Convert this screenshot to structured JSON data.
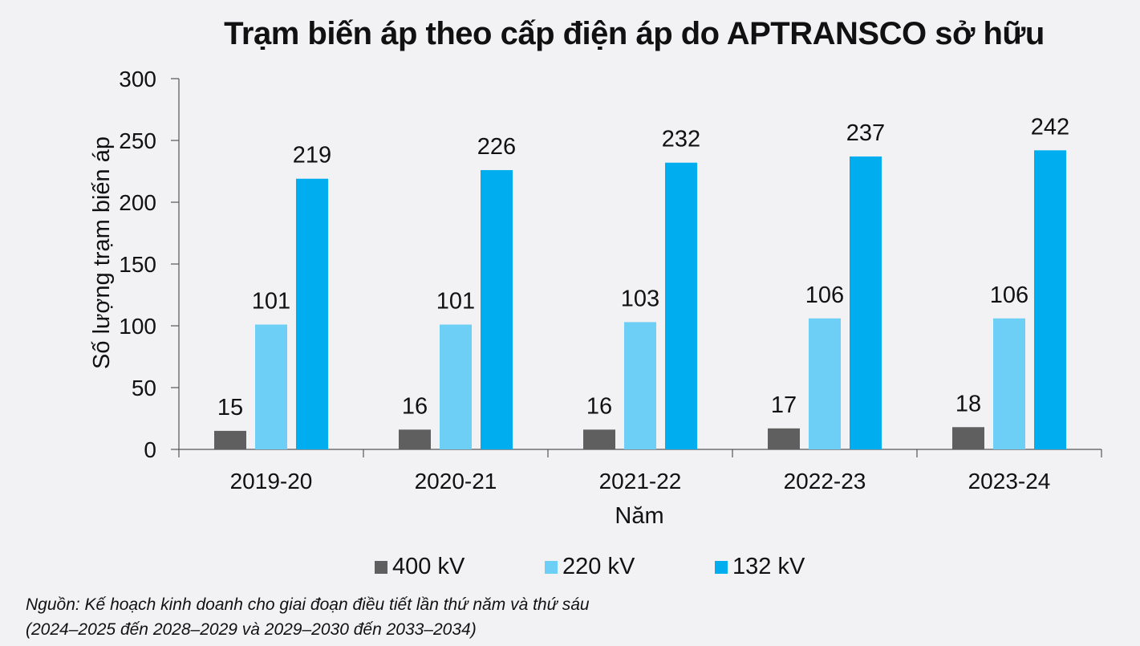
{
  "chart_data": {
    "type": "bar",
    "title": "Trạm biến áp theo cấp điện áp do APTRANSCO sở hữu",
    "xlabel": "Năm",
    "ylabel": "Số lượng trạm biến áp",
    "ylim": [
      0,
      300
    ],
    "yticks": [
      "0",
      "50",
      "100",
      "150",
      "200",
      "250",
      "300"
    ],
    "grid": false,
    "legend_position": "bottom",
    "categories": [
      "2019-20",
      "2020-21",
      "2021-22",
      "2022-23",
      "2023-24"
    ],
    "series": [
      {
        "name": "400 kV",
        "color": "#5f5f5f",
        "values": [
          15,
          16,
          16,
          17,
          18
        ]
      },
      {
        "name": "220 kV",
        "color": "#6ecff6",
        "values": [
          101,
          101,
          103,
          106,
          106
        ]
      },
      {
        "name": "132 kV",
        "color": "#00aeef",
        "values": [
          219,
          226,
          232,
          237,
          242
        ]
      }
    ]
  },
  "source": {
    "line1": "Nguồn: Kế hoạch kinh doanh cho giai đoạn điều tiết lần thứ năm và thứ sáu",
    "line2": "(2024–2025 đến 2028–2029 và 2029–2030 đến 2033–2034)"
  }
}
